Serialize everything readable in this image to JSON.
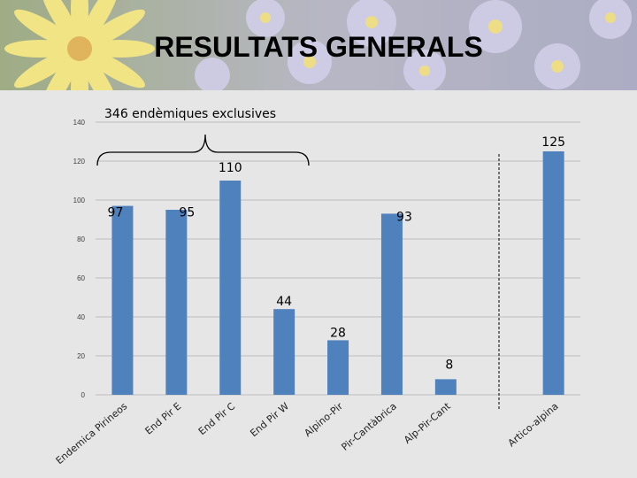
{
  "slide": {
    "title": "RESULTATS GENERALS"
  },
  "colors": {
    "bar": "#4f81bd",
    "background": "#e6e6e6",
    "grid": "#bfbfbf"
  },
  "annotations": {
    "bracket_label": "346 endèmiques exclusives"
  },
  "chart_data": {
    "type": "bar",
    "title": "",
    "xlabel": "",
    "ylabel": "",
    "ylim": [
      0,
      140
    ],
    "yticks": [
      0,
      20,
      40,
      60,
      80,
      100,
      120,
      140
    ],
    "grid": true,
    "categories": [
      "Endemica Pirineos",
      "End Pir E",
      "End Pir C",
      "End Pir W",
      "Alpino-Pir",
      "Pir-Cantàbrica",
      "Alp-Pir-Cant",
      "",
      "Artico-alpina"
    ],
    "values": [
      97,
      95,
      110,
      44,
      28,
      93,
      8,
      null,
      125
    ],
    "value_labels": [
      "97",
      "95",
      "110",
      "44",
      "28",
      "93",
      "8",
      "",
      "125"
    ]
  }
}
